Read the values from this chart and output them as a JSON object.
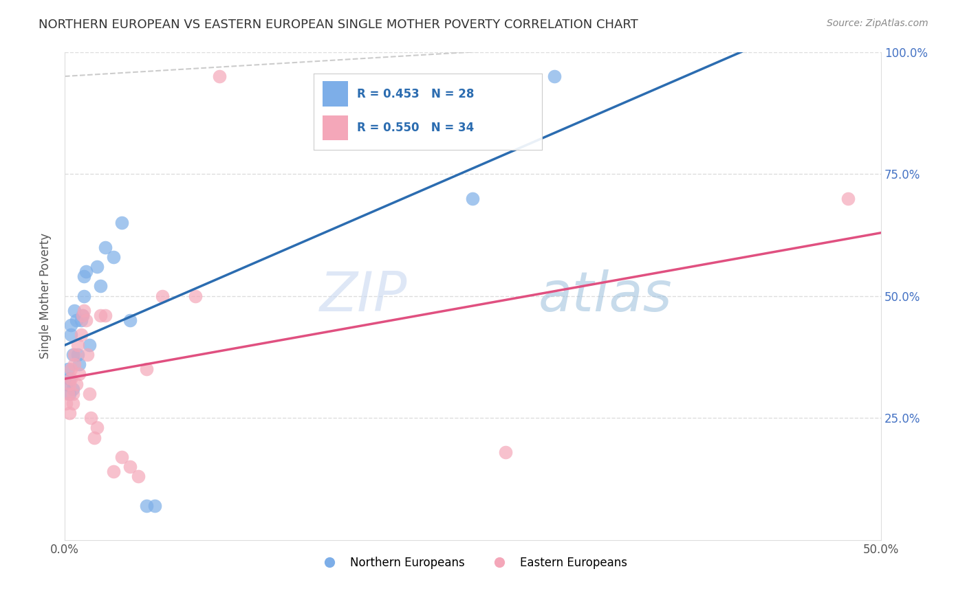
{
  "title": "NORTHERN EUROPEAN VS EASTERN EUROPEAN SINGLE MOTHER POVERTY CORRELATION CHART",
  "source": "Source: ZipAtlas.com",
  "ylabel": "Single Mother Poverty",
  "legend_blue_label": "Northern Europeans",
  "legend_pink_label": "Eastern Europeans",
  "R_blue": 0.453,
  "N_blue": 28,
  "R_pink": 0.55,
  "N_pink": 34,
  "blue_color": "#7daee8",
  "pink_color": "#f4a7b9",
  "blue_line_color": "#2b6cb0",
  "pink_line_color": "#e05080",
  "watermark_zip": "ZIP",
  "watermark_atlas": "atlas",
  "blue_x": [
    0.001,
    0.002,
    0.003,
    0.003,
    0.004,
    0.004,
    0.005,
    0.005,
    0.006,
    0.007,
    0.008,
    0.009,
    0.01,
    0.011,
    0.012,
    0.012,
    0.013,
    0.015,
    0.02,
    0.022,
    0.025,
    0.03,
    0.035,
    0.04,
    0.05,
    0.055,
    0.25,
    0.3
  ],
  "blue_y": [
    0.32,
    0.35,
    0.3,
    0.33,
    0.42,
    0.44,
    0.38,
    0.31,
    0.47,
    0.45,
    0.38,
    0.36,
    0.45,
    0.46,
    0.54,
    0.5,
    0.55,
    0.4,
    0.56,
    0.52,
    0.6,
    0.58,
    0.65,
    0.45,
    0.07,
    0.07,
    0.7,
    0.95
  ],
  "pink_x": [
    0.001,
    0.002,
    0.003,
    0.003,
    0.004,
    0.004,
    0.005,
    0.005,
    0.006,
    0.006,
    0.007,
    0.008,
    0.009,
    0.01,
    0.011,
    0.012,
    0.013,
    0.014,
    0.015,
    0.016,
    0.018,
    0.02,
    0.022,
    0.025,
    0.03,
    0.035,
    0.04,
    0.045,
    0.05,
    0.06,
    0.08,
    0.095,
    0.27,
    0.48
  ],
  "pink_y": [
    0.28,
    0.3,
    0.26,
    0.32,
    0.33,
    0.35,
    0.3,
    0.28,
    0.38,
    0.36,
    0.32,
    0.4,
    0.34,
    0.42,
    0.46,
    0.47,
    0.45,
    0.38,
    0.3,
    0.25,
    0.21,
    0.23,
    0.46,
    0.46,
    0.14,
    0.17,
    0.15,
    0.13,
    0.35,
    0.5,
    0.5,
    0.95,
    0.18,
    0.7
  ]
}
